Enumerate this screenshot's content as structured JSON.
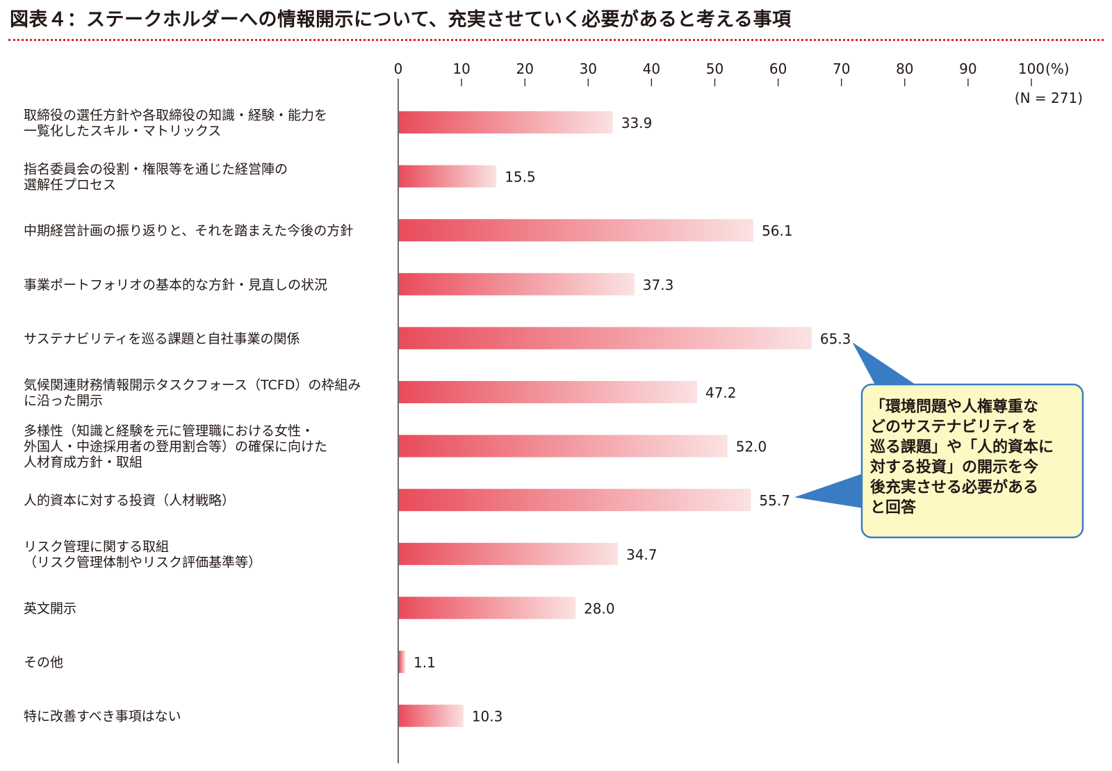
{
  "title": "図表４：ステークホルダーへの情報開示について、充実させていく必要があると考える事項",
  "colors": {
    "title_rule": "#d7262a",
    "bar_start": "#e94b5a",
    "bar_end": "#fbe2e2",
    "callout_fill": "#fdf9c4",
    "callout_border": "#3a7cc4",
    "text": "#231815"
  },
  "callout": {
    "text": "「環境問題や人権尊重などのサステナビリティを巡る課題」や「人的資本に対する投資」の開示を今後充実させる必要があると回答",
    "lines": [
      "「環境問題や人権尊重な",
      "どのサステナビリティを",
      "巡る課題」や「人的資本に",
      "対する投資」の開示を今",
      "後充実させる必要がある",
      "と回答"
    ],
    "points_to": [
      "65.3",
      "55.7"
    ]
  },
  "chart_data": {
    "type": "bar",
    "orientation": "horizontal",
    "title": "図表４：ステークホルダーへの情報開示について、充実させていく必要があると考える事項",
    "sample_size": "(N = 271)",
    "unit": "(%)",
    "xlim": [
      0,
      100
    ],
    "xticks": [
      "0",
      "10",
      "20",
      "30",
      "40",
      "50",
      "60",
      "70",
      "80",
      "90",
      "100"
    ],
    "axis_position": "top",
    "grid": false,
    "categories": [
      [
        "取締役の選任方針や各取締役の知識・経験・能力を",
        "一覧化したスキル・マトリックス"
      ],
      [
        "指名委員会の役割・権限等を通じた経営陣の",
        "選解任プロセス"
      ],
      [
        "中期経営計画の振り返りと、それを踏まえた今後の方針"
      ],
      [
        "事業ポートフォリオの基本的な方針・見直しの状況"
      ],
      [
        "サステナビリティを巡る課題と自社事業の関係"
      ],
      [
        "気候関連財務情報開示タスクフォース（TCFD）の枠組み",
        "に沿った開示"
      ],
      [
        "多様性（知識と経験を元に管理職における女性・",
        "外国人・中途採用者の登用割合等）の確保に向けた",
        "人材育成方針・取組"
      ],
      [
        "人的資本に対する投資（人材戦略）"
      ],
      [
        "リスク管理に関する取組",
        "（リスク管理体制やリスク評価基準等）"
      ],
      [
        "英文開示"
      ],
      [
        "その他"
      ],
      [
        "特に改善すべき事項はない"
      ]
    ],
    "values": [
      33.9,
      15.5,
      56.1,
      37.3,
      65.3,
      47.2,
      52.0,
      55.7,
      34.7,
      28.0,
      1.1,
      10.3
    ],
    "value_labels": [
      "33.9",
      "15.5",
      "56.1",
      "37.3",
      "65.3",
      "47.2",
      "52.0",
      "55.7",
      "34.7",
      "28.0",
      "1.1",
      "10.3"
    ]
  }
}
